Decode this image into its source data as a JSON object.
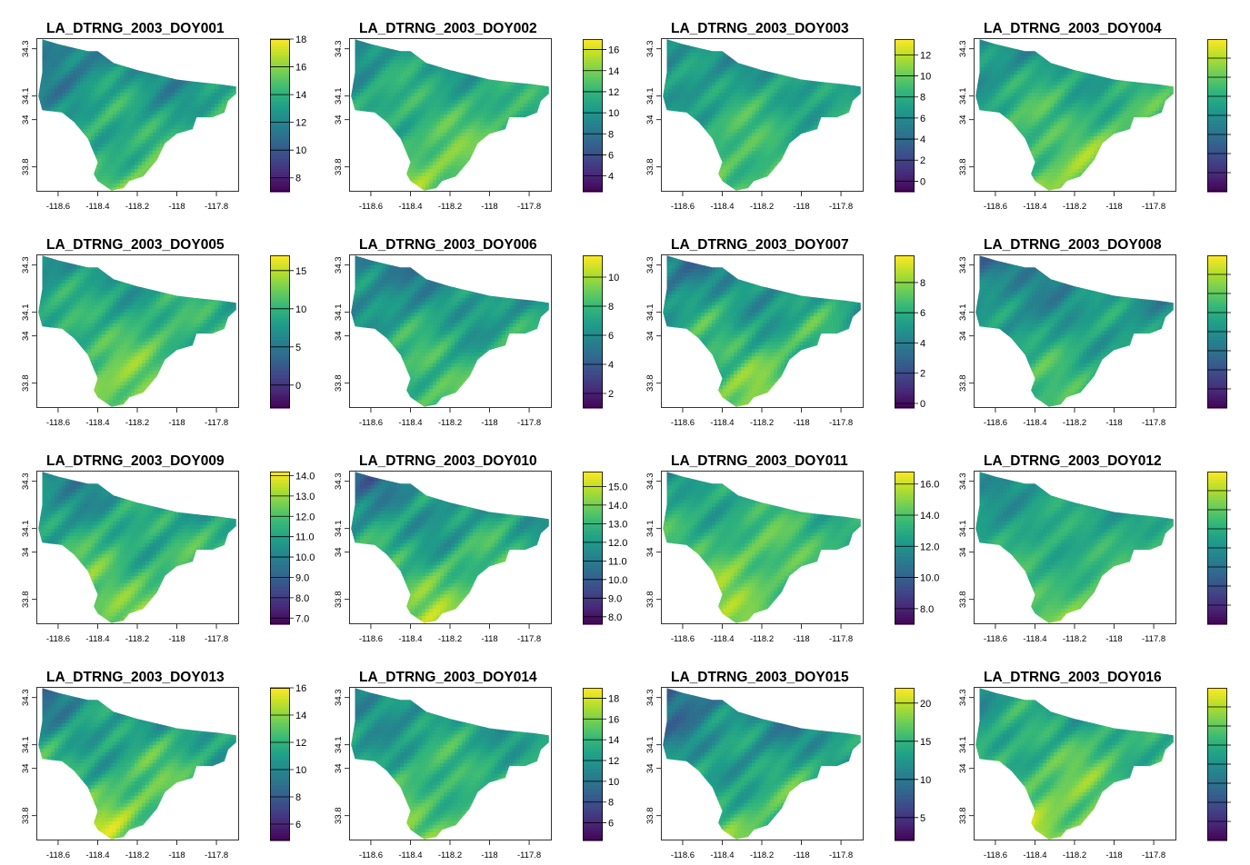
{
  "chart_data": [
    {
      "type": "heatmap",
      "title": "LA_DTRNG_2003_DOY001",
      "xticks": [
        "-118.6",
        "-118.4",
        "-118.2",
        "-118",
        "-117.8"
      ],
      "yticks": [
        "33.8",
        "34",
        "34.1",
        "34.3"
      ],
      "legend_ticks": [
        "8",
        "10",
        "12",
        "14",
        "16",
        "18"
      ],
      "legend_range": [
        7,
        18
      ],
      "map_range": [
        9,
        17
      ]
    },
    {
      "type": "heatmap",
      "title": "LA_DTRNG_2003_DOY002",
      "xticks": [
        "-118.6",
        "-118.4",
        "-118.2",
        "-118",
        "-117.8"
      ],
      "yticks": [
        "33.8",
        "34",
        "34.1",
        "34.3"
      ],
      "legend_ticks": [
        "4",
        "6",
        "8",
        "10",
        "12",
        "14",
        "16"
      ],
      "legend_range": [
        2.5,
        17
      ],
      "map_range": [
        7,
        16
      ]
    },
    {
      "type": "heatmap",
      "title": "LA_DTRNG_2003_DOY003",
      "xticks": [
        "-118.6",
        "-118.4",
        "-118.2",
        "-118",
        "-117.8"
      ],
      "yticks": [
        "33.8",
        "34",
        "34.1",
        "34.3"
      ],
      "legend_ticks": [
        "0",
        "2",
        "4",
        "6",
        "8",
        "10",
        "12"
      ],
      "legend_range": [
        -1,
        13.5
      ],
      "map_range": [
        3,
        12
      ]
    },
    {
      "type": "heatmap",
      "title": "LA_DTRNG_2003_DOY004",
      "xticks": [
        "-118.6",
        "-118.4",
        "-118.2",
        "-118",
        "-117.8"
      ],
      "yticks": [
        "33.8",
        "34",
        "34.1",
        "34.3"
      ],
      "legend_ticks": [],
      "legend_range": [
        0,
        1
      ],
      "map_range": [
        0.3,
        0.95
      ]
    },
    {
      "type": "heatmap",
      "title": "LA_DTRNG_2003_DOY005",
      "xticks": [
        "-118.6",
        "-118.4",
        "-118.2",
        "-118",
        "-117.8"
      ],
      "yticks": [
        "33.8",
        "34",
        "34.1",
        "34.3"
      ],
      "legend_ticks": [
        "0",
        "5",
        "10",
        "15"
      ],
      "legend_range": [
        -3,
        17
      ],
      "map_range": [
        3,
        16
      ]
    },
    {
      "type": "heatmap",
      "title": "LA_DTRNG_2003_DOY006",
      "xticks": [
        "-118.6",
        "-118.4",
        "-118.2",
        "-118",
        "-117.8"
      ],
      "yticks": [
        "33.8",
        "34",
        "34.1",
        "34.3"
      ],
      "legend_ticks": [
        "2",
        "4",
        "6",
        "8",
        "10"
      ],
      "legend_range": [
        1,
        11.5
      ],
      "map_range": [
        3,
        10.5
      ]
    },
    {
      "type": "heatmap",
      "title": "LA_DTRNG_2003_DOY007",
      "xticks": [
        "-118.6",
        "-118.4",
        "-118.2",
        "-118",
        "-117.8"
      ],
      "yticks": [
        "33.8",
        "34",
        "34.1",
        "34.3"
      ],
      "legend_ticks": [
        "0",
        "2",
        "4",
        "6",
        "8"
      ],
      "legend_range": [
        -0.3,
        9.8
      ],
      "map_range": [
        1.5,
        9.5
      ]
    },
    {
      "type": "heatmap",
      "title": "LA_DTRNG_2003_DOY008",
      "xticks": [
        "-118.6",
        "-118.4",
        "-118.2",
        "-118",
        "-117.8"
      ],
      "yticks": [
        "33.8",
        "34",
        "34.1",
        "34.3"
      ],
      "legend_ticks": [],
      "legend_range": [
        0,
        1
      ],
      "map_range": [
        0.2,
        0.85
      ]
    },
    {
      "type": "heatmap",
      "title": "LA_DTRNG_2003_DOY009",
      "xticks": [
        "-118.6",
        "-118.4",
        "-118.2",
        "-118",
        "-117.8"
      ],
      "yticks": [
        "33.8",
        "34",
        "34.1",
        "34.3"
      ],
      "legend_ticks": [
        "7.0",
        "8.0",
        "9.0",
        "10.0",
        "11.0",
        "12.0",
        "13.0",
        "14.0"
      ],
      "legend_range": [
        6.7,
        14.2
      ],
      "map_range": [
        8.5,
        14
      ]
    },
    {
      "type": "heatmap",
      "title": "LA_DTRNG_2003_DOY010",
      "xticks": [
        "-118.6",
        "-118.4",
        "-118.2",
        "-118",
        "-117.8"
      ],
      "yticks": [
        "33.8",
        "34",
        "34.1",
        "34.3"
      ],
      "legend_ticks": [
        "8.0",
        "9.0",
        "10.0",
        "11.0",
        "12.0",
        "13.0",
        "14.0",
        "15.0"
      ],
      "legend_range": [
        7.6,
        15.8
      ],
      "map_range": [
        9,
        15.5
      ]
    },
    {
      "type": "heatmap",
      "title": "LA_DTRNG_2003_DOY011",
      "xticks": [
        "-118.6",
        "-118.4",
        "-118.2",
        "-118",
        "-117.8"
      ],
      "yticks": [
        "33.8",
        "34",
        "34.1",
        "34.3"
      ],
      "legend_ticks": [
        "8.0",
        "10.0",
        "12.0",
        "14.0",
        "16.0"
      ],
      "legend_range": [
        7,
        16.8
      ],
      "map_range": [
        10.5,
        16.5
      ]
    },
    {
      "type": "heatmap",
      "title": "LA_DTRNG_2003_DOY012",
      "xticks": [
        "-118.6",
        "-118.4",
        "-118.2",
        "-118",
        "-117.8"
      ],
      "yticks": [
        "33.8",
        "34",
        "34.1",
        "34.3"
      ],
      "legend_ticks": [],
      "legend_range": [
        0,
        1
      ],
      "map_range": [
        0.35,
        0.85
      ]
    },
    {
      "type": "heatmap",
      "title": "LA_DTRNG_2003_DOY013",
      "xticks": [
        "-118.6",
        "-118.4",
        "-118.2",
        "-118",
        "-117.8"
      ],
      "yticks": [
        "33.8",
        "34",
        "34.1",
        "34.3"
      ],
      "legend_ticks": [
        "6",
        "8",
        "10",
        "12",
        "14",
        "16"
      ],
      "legend_range": [
        4.8,
        16
      ],
      "map_range": [
        7,
        16
      ]
    },
    {
      "type": "heatmap",
      "title": "LA_DTRNG_2003_DOY014",
      "xticks": [
        "-118.6",
        "-118.4",
        "-118.2",
        "-118",
        "-117.8"
      ],
      "yticks": [
        "33.8",
        "34",
        "34.1",
        "34.3"
      ],
      "legend_ticks": [
        "6",
        "8",
        "10",
        "12",
        "14",
        "16",
        "18"
      ],
      "legend_range": [
        4.3,
        19
      ],
      "map_range": [
        8,
        18
      ]
    },
    {
      "type": "heatmap",
      "title": "LA_DTRNG_2003_DOY015",
      "xticks": [
        "-118.6",
        "-118.4",
        "-118.2",
        "-118",
        "-117.8"
      ],
      "yticks": [
        "33.8",
        "34",
        "34.1",
        "34.3"
      ],
      "legend_ticks": [
        "5",
        "10",
        "15",
        "20"
      ],
      "legend_range": [
        2,
        22
      ],
      "map_range": [
        5,
        20
      ]
    },
    {
      "type": "heatmap",
      "title": "LA_DTRNG_2003_DOY016",
      "xticks": [
        "-118.6",
        "-118.4",
        "-118.2",
        "-118",
        "-117.8"
      ],
      "yticks": [
        "33.8",
        "34",
        "34.1",
        "34.3"
      ],
      "legend_ticks": [],
      "legend_range": [
        0,
        1
      ],
      "map_range": [
        0.3,
        1.0
      ]
    }
  ]
}
